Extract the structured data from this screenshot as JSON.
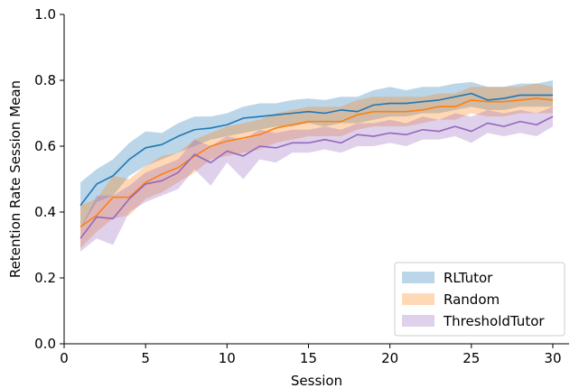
{
  "chart_data": {
    "type": "line",
    "xlabel": "Session",
    "ylabel": "Retention Rate Session Mean",
    "xlim": [
      0,
      31
    ],
    "ylim": [
      0.0,
      1.0
    ],
    "xticks": [
      0,
      5,
      10,
      15,
      20,
      25,
      30
    ],
    "yticks": [
      0.0,
      0.2,
      0.4,
      0.6,
      0.8,
      1.0
    ],
    "xtick_labels": [
      "0",
      "5",
      "10",
      "15",
      "20",
      "25",
      "30"
    ],
    "ytick_labels": [
      "0.0",
      "0.2",
      "0.4",
      "0.6",
      "0.8",
      "1.0"
    ],
    "grid": false,
    "legend_position": "lower-right",
    "x": [
      1,
      2,
      3,
      4,
      5,
      6,
      7,
      8,
      9,
      10,
      11,
      12,
      13,
      14,
      15,
      16,
      17,
      18,
      19,
      20,
      21,
      22,
      23,
      24,
      25,
      26,
      27,
      28,
      29,
      30
    ],
    "series": [
      {
        "name": "RLTutor",
        "color": "#1f77b4",
        "band_color": "#1f77b4",
        "values": [
          0.42,
          0.485,
          0.51,
          0.56,
          0.595,
          0.605,
          0.63,
          0.65,
          0.655,
          0.665,
          0.685,
          0.69,
          0.695,
          0.7,
          0.705,
          0.7,
          0.71,
          0.705,
          0.725,
          0.73,
          0.73,
          0.735,
          0.74,
          0.75,
          0.76,
          0.74,
          0.745,
          0.755,
          0.755,
          0.755
        ],
        "lower": [
          0.35,
          0.43,
          0.45,
          0.51,
          0.54,
          0.56,
          0.58,
          0.6,
          0.62,
          0.63,
          0.64,
          0.65,
          0.66,
          0.66,
          0.67,
          0.66,
          0.67,
          0.67,
          0.68,
          0.69,
          0.69,
          0.7,
          0.7,
          0.71,
          0.72,
          0.71,
          0.71,
          0.72,
          0.72,
          0.72
        ],
        "upper": [
          0.49,
          0.53,
          0.56,
          0.61,
          0.645,
          0.64,
          0.67,
          0.69,
          0.69,
          0.7,
          0.72,
          0.73,
          0.73,
          0.74,
          0.745,
          0.74,
          0.75,
          0.75,
          0.77,
          0.78,
          0.77,
          0.78,
          0.78,
          0.79,
          0.795,
          0.78,
          0.78,
          0.79,
          0.79,
          0.8
        ]
      },
      {
        "name": "Random",
        "color": "#ff7f0e",
        "band_color": "#ff7f0e",
        "values": [
          0.355,
          0.39,
          0.445,
          0.445,
          0.49,
          0.515,
          0.535,
          0.57,
          0.6,
          0.615,
          0.625,
          0.635,
          0.655,
          0.665,
          0.675,
          0.675,
          0.675,
          0.695,
          0.705,
          0.705,
          0.705,
          0.71,
          0.72,
          0.72,
          0.74,
          0.735,
          0.735,
          0.74,
          0.745,
          0.74
        ],
        "lower": [
          0.29,
          0.34,
          0.38,
          0.39,
          0.44,
          0.46,
          0.49,
          0.52,
          0.56,
          0.57,
          0.58,
          0.59,
          0.61,
          0.62,
          0.63,
          0.63,
          0.63,
          0.65,
          0.66,
          0.66,
          0.66,
          0.67,
          0.68,
          0.68,
          0.7,
          0.69,
          0.69,
          0.7,
          0.7,
          0.7
        ],
        "upper": [
          0.42,
          0.44,
          0.51,
          0.5,
          0.54,
          0.57,
          0.58,
          0.62,
          0.64,
          0.66,
          0.67,
          0.68,
          0.7,
          0.71,
          0.72,
          0.72,
          0.72,
          0.74,
          0.75,
          0.75,
          0.75,
          0.75,
          0.76,
          0.76,
          0.78,
          0.78,
          0.78,
          0.78,
          0.79,
          0.78
        ]
      },
      {
        "name": "ThresholdTutor",
        "color": "#9467bd",
        "band_color": "#9467bd",
        "values": [
          0.32,
          0.385,
          0.38,
          0.44,
          0.485,
          0.495,
          0.52,
          0.575,
          0.55,
          0.585,
          0.57,
          0.6,
          0.595,
          0.61,
          0.61,
          0.62,
          0.61,
          0.635,
          0.63,
          0.64,
          0.635,
          0.65,
          0.645,
          0.66,
          0.645,
          0.67,
          0.66,
          0.675,
          0.665,
          0.69
        ],
        "lower": [
          0.28,
          0.32,
          0.3,
          0.4,
          0.43,
          0.45,
          0.47,
          0.53,
          0.48,
          0.55,
          0.5,
          0.56,
          0.55,
          0.58,
          0.58,
          0.59,
          0.58,
          0.6,
          0.6,
          0.61,
          0.6,
          0.62,
          0.62,
          0.63,
          0.61,
          0.64,
          0.63,
          0.64,
          0.63,
          0.66
        ],
        "upper": [
          0.35,
          0.45,
          0.45,
          0.48,
          0.52,
          0.54,
          0.56,
          0.62,
          0.6,
          0.63,
          0.62,
          0.65,
          0.64,
          0.65,
          0.65,
          0.66,
          0.65,
          0.67,
          0.67,
          0.68,
          0.67,
          0.69,
          0.68,
          0.7,
          0.69,
          0.71,
          0.7,
          0.71,
          0.7,
          0.72
        ]
      }
    ]
  }
}
